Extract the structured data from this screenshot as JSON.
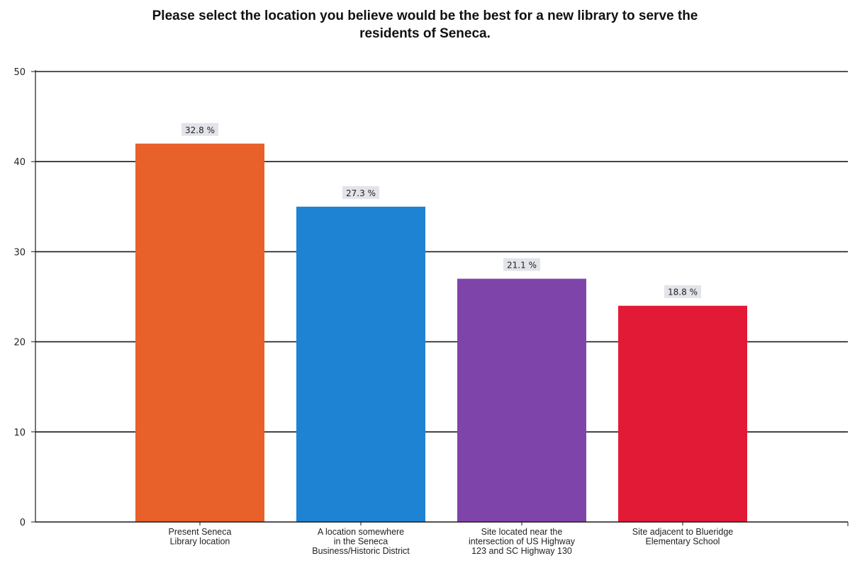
{
  "chart_data": {
    "type": "bar",
    "title": "Please select the location you believe would be the best for a new library to serve the\nresidents of Seneca.",
    "categories": [
      [
        "Present Seneca",
        "Library location"
      ],
      [
        "A location somewhere",
        "in the Seneca",
        "Business/Historic District"
      ],
      [
        "Site located near the",
        "intersection of US Highway",
        "123 and SC Highway 130"
      ],
      [
        "Site adjacent to Blueridge",
        "Elementary School"
      ]
    ],
    "values": [
      42,
      35,
      27,
      24
    ],
    "data_labels": [
      "32.8 %",
      "27.3 %",
      "21.1 %",
      "18.8 %"
    ],
    "colors": [
      "#e8602a",
      "#1f83d3",
      "#7f44aa",
      "#e21a36"
    ],
    "ylim": [
      0,
      50
    ],
    "yticks": [
      "0",
      "10",
      "20",
      "30",
      "40",
      "50"
    ],
    "grid": true,
    "xlabel": "",
    "ylabel": ""
  }
}
